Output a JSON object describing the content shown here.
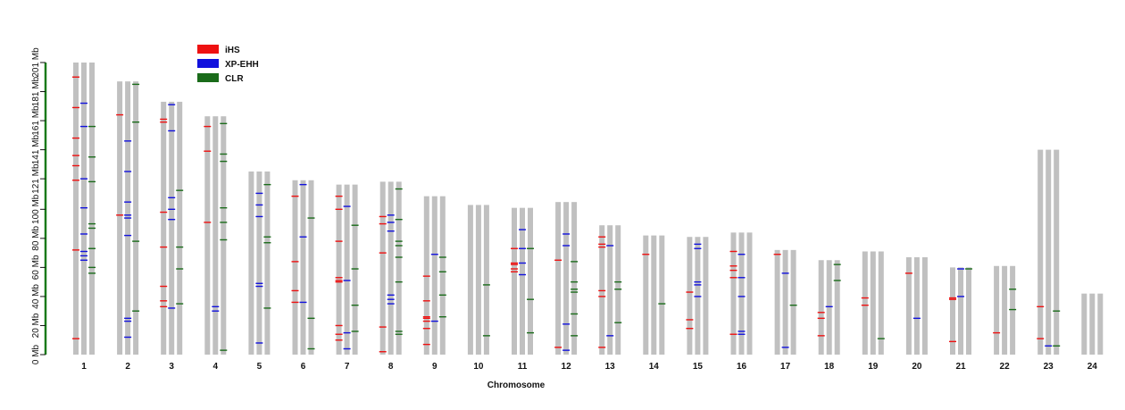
{
  "chart_data": {
    "type": "ideogram",
    "xlabel": "Chromosome",
    "ylabel": "",
    "y_unit": "Mb",
    "ylim": [
      0,
      201
    ],
    "y_ticks": [
      {
        "value": 0,
        "label": "0 Mb"
      },
      {
        "value": 20,
        "label": "20 Mb"
      },
      {
        "value": 40,
        "label": "40 Mb"
      },
      {
        "value": 60,
        "label": "60 Mb"
      },
      {
        "value": 80,
        "label": "80 Mb"
      },
      {
        "value": 100,
        "label": "100 Mb"
      },
      {
        "value": 121,
        "label": "121 Mb"
      },
      {
        "value": 141,
        "label": "141 Mb"
      },
      {
        "value": 161,
        "label": "161 Mb"
      },
      {
        "value": 181,
        "label": "181 Mb"
      },
      {
        "value": 201,
        "label": "201 Mb"
      }
    ],
    "legend_position": "top-left",
    "colors": {
      "bar": "#c0c0c0",
      "axis": "#1a7a1a"
    },
    "series": [
      {
        "name": "iHS",
        "color": "#ee1111"
      },
      {
        "name": "XP-EHH",
        "color": "#1111dd"
      },
      {
        "name": "CLR",
        "color": "#1a6b1a"
      }
    ],
    "chromosomes": [
      {
        "label": "1",
        "length": 201,
        "iHS": [
          191,
          170,
          149,
          137,
          130,
          120,
          72,
          11
        ],
        "XP-EHH": [
          173,
          157,
          121,
          101,
          83,
          71,
          68,
          65
        ],
        "CLR": [
          157,
          136,
          119,
          90,
          87,
          73,
          60,
          56
        ]
      },
      {
        "label": "2",
        "length": 188,
        "iHS": [
          165,
          96
        ],
        "XP-EHH": [
          147,
          126,
          105,
          96,
          94,
          82,
          25,
          23,
          12
        ],
        "CLR": [
          186,
          160,
          78,
          30
        ]
      },
      {
        "label": "3",
        "length": 174,
        "iHS": [
          162,
          160,
          98,
          74,
          47,
          37,
          33
        ],
        "XP-EHH": [
          172,
          154,
          108,
          100,
          93,
          32
        ],
        "CLR": [
          113,
          74,
          59,
          35
        ]
      },
      {
        "label": "4",
        "length": 164,
        "iHS": [
          157,
          140,
          91
        ],
        "XP-EHH": [
          33,
          30
        ],
        "CLR": [
          159,
          138,
          133,
          101,
          91,
          79,
          3
        ]
      },
      {
        "label": "5",
        "length": 126,
        "iHS": [],
        "XP-EHH": [
          111,
          103,
          95,
          49,
          47,
          8
        ],
        "CLR": [
          117,
          81,
          77,
          32
        ]
      },
      {
        "label": "6",
        "length": 120,
        "iHS": [
          109,
          64,
          44,
          36
        ],
        "XP-EHH": [
          117,
          81,
          36
        ],
        "CLR": [
          94,
          25,
          4
        ]
      },
      {
        "label": "7",
        "length": 117,
        "iHS": [
          109,
          100,
          78,
          53,
          51,
          50,
          20,
          14,
          10
        ],
        "XP-EHH": [
          102,
          51,
          15,
          4
        ],
        "CLR": [
          89,
          59,
          34,
          16
        ]
      },
      {
        "label": "8",
        "length": 119,
        "iHS": [
          95,
          90,
          70,
          19,
          2
        ],
        "XP-EHH": [
          96,
          91,
          85,
          41,
          38,
          35
        ],
        "CLR": [
          114,
          93,
          78,
          75,
          67,
          50,
          16,
          14
        ]
      },
      {
        "label": "9",
        "length": 109,
        "iHS": [
          54,
          37,
          26,
          25,
          23,
          18,
          7
        ],
        "XP-EHH": [
          69,
          23
        ],
        "CLR": [
          67,
          57,
          41,
          26
        ]
      },
      {
        "label": "10",
        "length": 103,
        "iHS": [],
        "XP-EHH": [],
        "CLR": [
          48,
          13
        ]
      },
      {
        "label": "11",
        "length": 101,
        "iHS": [
          73,
          63,
          62,
          59,
          57
        ],
        "XP-EHH": [
          86,
          73,
          63,
          55
        ],
        "CLR": [
          73,
          38,
          15
        ]
      },
      {
        "label": "12",
        "length": 105,
        "iHS": [
          65,
          5
        ],
        "XP-EHH": [
          83,
          75,
          21,
          3
        ],
        "CLR": [
          64,
          50,
          45,
          43,
          28,
          13
        ]
      },
      {
        "label": "13",
        "length": 89,
        "iHS": [
          81,
          76,
          74,
          44,
          40,
          5
        ],
        "XP-EHH": [
          75,
          13
        ],
        "CLR": [
          50,
          45,
          22
        ]
      },
      {
        "label": "14",
        "length": 82,
        "iHS": [
          69
        ],
        "XP-EHH": [],
        "CLR": [
          35
        ]
      },
      {
        "label": "15",
        "length": 81,
        "iHS": [
          43,
          24,
          18
        ],
        "XP-EHH": [
          76,
          73,
          50,
          48,
          40
        ],
        "CLR": []
      },
      {
        "label": "16",
        "length": 84,
        "iHS": [
          71,
          61,
          58,
          53,
          14
        ],
        "XP-EHH": [
          69,
          53,
          40,
          16,
          14
        ],
        "CLR": []
      },
      {
        "label": "17",
        "length": 72,
        "iHS": [
          69
        ],
        "XP-EHH": [
          56,
          5
        ],
        "CLR": [
          34
        ]
      },
      {
        "label": "18",
        "length": 65,
        "iHS": [
          29,
          25,
          13
        ],
        "XP-EHH": [
          33
        ],
        "CLR": [
          62,
          51
        ]
      },
      {
        "label": "19",
        "length": 71,
        "iHS": [
          39,
          34
        ],
        "XP-EHH": [],
        "CLR": [
          11
        ]
      },
      {
        "label": "20",
        "length": 67,
        "iHS": [
          56
        ],
        "XP-EHH": [
          25
        ],
        "CLR": []
      },
      {
        "label": "21",
        "length": 60,
        "iHS": [
          39,
          38,
          9
        ],
        "XP-EHH": [
          59,
          40
        ],
        "CLR": [
          59
        ]
      },
      {
        "label": "22",
        "length": 61,
        "iHS": [
          15
        ],
        "XP-EHH": [],
        "CLR": [
          45,
          31
        ]
      },
      {
        "label": "23",
        "length": 141,
        "iHS": [
          33,
          11
        ],
        "XP-EHH": [
          6
        ],
        "CLR": [
          30,
          6
        ]
      },
      {
        "label": "24",
        "length": 42,
        "iHS": [],
        "XP-EHH": [],
        "CLR": []
      }
    ]
  }
}
